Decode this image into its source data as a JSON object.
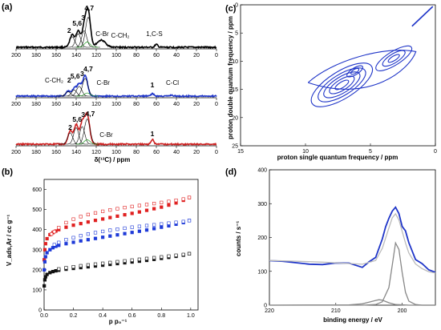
{
  "panels": {
    "a": {
      "letter": "(a)"
    },
    "b": {
      "letter": "(b)"
    },
    "c": {
      "letter": "(c)"
    },
    "d": {
      "letter": "(d)"
    }
  },
  "chart_data": [
    {
      "id": "a",
      "type": "line",
      "xlabel": "δ(¹³C) / ppm",
      "xlim": [
        200,
        0
      ],
      "xticks": [
        200,
        180,
        160,
        140,
        120,
        100,
        80,
        60,
        40,
        20,
        0
      ],
      "stacked_spectra": [
        {
          "color": "#000000",
          "peaks_ppm": [
            144,
            138,
            132,
            128,
            115,
            60
          ],
          "labels": [
            {
              "text": "2",
              "ppm": 147,
              "bold": true
            },
            {
              "text": "5,6",
              "ppm": 139,
              "bold": true
            },
            {
              "text": "3",
              "ppm": 133,
              "bold": true
            },
            {
              "text": "4,7",
              "ppm": 127,
              "bold": true
            },
            {
              "text": "C-Br",
              "ppm": 114,
              "bold": false
            },
            {
              "text": "C-CH₂",
              "ppm": 96,
              "bold": false
            },
            {
              "text": "1,C-S",
              "ppm": 62,
              "bold": false
            }
          ]
        },
        {
          "color": "#1f35c8",
          "peaks_ppm": [
            148,
            142,
            137,
            131,
            64,
            45
          ],
          "labels": [
            {
              "text": "C-CH₂",
              "ppm": 162,
              "bold": false
            },
            {
              "text": "2",
              "ppm": 147,
              "bold": true
            },
            {
              "text": "5,6",
              "ppm": 141,
              "bold": true
            },
            {
              "text": "3",
              "ppm": 134,
              "bold": true
            },
            {
              "text": "4,7",
              "ppm": 128,
              "bold": true
            },
            {
              "text": "C-Br",
              "ppm": 113,
              "bold": false
            },
            {
              "text": "1",
              "ppm": 64,
              "bold": true
            },
            {
              "text": "C-Cl",
              "ppm": 44,
              "bold": false
            }
          ]
        },
        {
          "color": "#cc1f1f",
          "peaks_ppm": [
            146,
            140,
            134,
            129,
            64
          ],
          "labels": [
            {
              "text": "2",
              "ppm": 146,
              "bold": true
            },
            {
              "text": "5,6",
              "ppm": 139,
              "bold": true
            },
            {
              "text": "3",
              "ppm": 133,
              "bold": true
            },
            {
              "text": "4,7",
              "ppm": 126,
              "bold": true
            },
            {
              "text": "C-Br",
              "ppm": 110,
              "bold": false
            },
            {
              "text": "1",
              "ppm": 64,
              "bold": true
            }
          ]
        }
      ]
    },
    {
      "id": "b",
      "type": "scatter",
      "xlabel": "p p₀⁻¹",
      "ylabel": "V_ads,Ar / cc g⁻¹",
      "xlim": [
        0,
        1.05
      ],
      "ylim": [
        0,
        650
      ],
      "xticks": [
        0.0,
        0.2,
        0.4,
        0.6,
        0.8,
        1.0
      ],
      "yticks": [
        0,
        100,
        200,
        300,
        400,
        500,
        600
      ],
      "series": [
        {
          "color": "#e02020",
          "filled": true,
          "x": [
            0.001,
            0.005,
            0.01,
            0.02,
            0.04,
            0.06,
            0.08,
            0.1,
            0.15,
            0.2,
            0.25,
            0.3,
            0.35,
            0.4,
            0.45,
            0.5,
            0.55,
            0.6,
            0.65,
            0.7,
            0.75,
            0.8,
            0.85,
            0.9,
            0.95,
            0.99
          ],
          "y": [
            250,
            300,
            330,
            355,
            375,
            385,
            393,
            400,
            412,
            422,
            430,
            438,
            446,
            453,
            460,
            467,
            474,
            481,
            488,
            496,
            504,
            512,
            522,
            533,
            546,
            560
          ]
        },
        {
          "color": "#e02020",
          "filled": false,
          "x": [
            0.99,
            0.95,
            0.9,
            0.85,
            0.8,
            0.75,
            0.7,
            0.65,
            0.6,
            0.55,
            0.5,
            0.45,
            0.4,
            0.35,
            0.3,
            0.25,
            0.2,
            0.15,
            0.1,
            0.07,
            0.05
          ],
          "y": [
            560,
            552,
            546,
            540,
            535,
            530,
            525,
            520,
            515,
            510,
            504,
            498,
            491,
            483,
            475,
            465,
            452,
            435,
            410,
            390,
            378
          ]
        },
        {
          "color": "#1f3bd8",
          "filled": true,
          "x": [
            0.001,
            0.005,
            0.01,
            0.02,
            0.04,
            0.06,
            0.08,
            0.1,
            0.15,
            0.2,
            0.25,
            0.3,
            0.35,
            0.4,
            0.45,
            0.5,
            0.55,
            0.6,
            0.65,
            0.7,
            0.75,
            0.8,
            0.85,
            0.9,
            0.95,
            0.99
          ],
          "y": [
            200,
            240,
            265,
            285,
            300,
            310,
            317,
            322,
            330,
            337,
            344,
            350,
            356,
            362,
            368,
            374,
            380,
            386,
            392,
            398,
            405,
            412,
            419,
            427,
            435,
            445
          ]
        },
        {
          "color": "#1f3bd8",
          "filled": false,
          "x": [
            0.99,
            0.95,
            0.9,
            0.85,
            0.8,
            0.75,
            0.7,
            0.65,
            0.6,
            0.55,
            0.5,
            0.45,
            0.4,
            0.35,
            0.3,
            0.25,
            0.2,
            0.15,
            0.1,
            0.07
          ],
          "y": [
            445,
            440,
            436,
            432,
            428,
            424,
            420,
            416,
            412,
            407,
            402,
            397,
            391,
            385,
            378,
            370,
            360,
            350,
            336,
            325
          ]
        },
        {
          "color": "#111111",
          "filled": true,
          "x": [
            0.001,
            0.005,
            0.01,
            0.02,
            0.04,
            0.06,
            0.08,
            0.1,
            0.15,
            0.2,
            0.25,
            0.3,
            0.35,
            0.4,
            0.45,
            0.5,
            0.55,
            0.6,
            0.65,
            0.7,
            0.75,
            0.8,
            0.85,
            0.9,
            0.95,
            0.99
          ],
          "y": [
            120,
            150,
            165,
            177,
            186,
            191,
            195,
            198,
            203,
            207,
            211,
            215,
            219,
            223,
            227,
            231,
            235,
            239,
            243,
            247,
            252,
            257,
            262,
            267,
            273,
            280
          ]
        },
        {
          "color": "#111111",
          "filled": false,
          "x": [
            0.99,
            0.95,
            0.9,
            0.85,
            0.8,
            0.75,
            0.7,
            0.65,
            0.6,
            0.55,
            0.5,
            0.45,
            0.4,
            0.35,
            0.3,
            0.25,
            0.2,
            0.15,
            0.1
          ],
          "y": [
            280,
            276,
            272,
            268,
            264,
            260,
            256,
            252,
            248,
            244,
            240,
            236,
            232,
            228,
            224,
            220,
            215,
            210,
            204
          ]
        }
      ]
    },
    {
      "id": "c",
      "type": "contour",
      "xlabel": "proton single quantum frequency / ppm",
      "ylabel": "proton double quantum frequency / ppm",
      "xlim": [
        15,
        0
      ],
      "ylim": [
        0,
        25
      ],
      "xticks": [
        15,
        10,
        5,
        0
      ],
      "yticks": [
        0,
        5,
        10,
        15,
        20,
        25
      ],
      "color": "#1f35c8",
      "features": [
        {
          "name": "main",
          "cx": 7.2,
          "cy": 14.2,
          "levels": [
            [
              0.6,
              0.5
            ],
            [
              1.1,
              0.95
            ],
            [
              1.6,
              1.4
            ],
            [
              2.1,
              1.85
            ],
            [
              2.7,
              2.4
            ]
          ]
        },
        {
          "name": "secondary",
          "cx": 3.2,
          "cy": 9.5,
          "levels": [
            [
              0.5,
              0.4
            ],
            [
              1.0,
              0.8
            ],
            [
              1.6,
              1.2
            ]
          ]
        },
        {
          "name": "small",
          "cx": 6.2,
          "cy": 11.8,
          "levels": [
            [
              0.35,
              0.35
            ],
            [
              0.7,
              0.6
            ]
          ]
        },
        {
          "name": "diagonal",
          "x1": 1.8,
          "y1": 3.8,
          "x2": 0.2,
          "y2": 0.3
        }
      ]
    },
    {
      "id": "d",
      "type": "line",
      "xlabel": "binding energy / eV",
      "ylabel": "counts / s⁻¹",
      "xlim": [
        220,
        195
      ],
      "ylim": [
        0,
        400
      ],
      "xticks": [
        220,
        210,
        200
      ],
      "yticks": [
        0,
        100,
        200,
        300,
        400
      ],
      "series": [
        {
          "name": "",
          "color": "#1f35c8",
          "x": [
            220,
            218,
            216,
            214,
            212,
            210,
            208,
            206,
            205,
            204,
            203,
            202.5,
            202,
            201.5,
            201,
            200.5,
            200,
            199.5,
            199,
            198.5,
            198,
            197,
            196,
            195
          ],
          "y": [
            137,
            135,
            131,
            127,
            126,
            124,
            119,
            117,
            122,
            144,
            194,
            228,
            258,
            282,
            292,
            268,
            238,
            214,
            182,
            158,
            138,
            120,
            104,
            97
          ]
        },
        {
          "name": "",
          "color": "#bbbbbb",
          "x": [
            220,
            216,
            212,
            208,
            206,
            204,
            203,
            202,
            201.5,
            201,
            200.5,
            200,
            199.5,
            199,
            198,
            197,
            196,
            195
          ],
          "y": [
            132,
            130,
            127,
            123,
            121,
            132,
            168,
            228,
            258,
            270,
            252,
            218,
            184,
            154,
            122,
            108,
            99,
            95
          ]
        },
        {
          "name": "",
          "color": "#888888",
          "x": [
            220,
            206,
            204,
            203,
            202,
            201.5,
            201,
            200.5,
            200,
            199.5,
            199,
            198,
            197,
            195
          ],
          "y": [
            0,
            0,
            2,
            10,
            52,
            118,
            184,
            165,
            96,
            38,
            12,
            2,
            0,
            0
          ]
        },
        {
          "name": "",
          "color": "#888888",
          "x": [
            220,
            208,
            206,
            205,
            204,
            203.5,
            203,
            202.5,
            202,
            201,
            199,
            195
          ],
          "y": [
            0,
            1,
            4,
            9,
            14,
            16,
            15,
            11,
            7,
            2,
            0,
            0
          ]
        }
      ]
    }
  ]
}
